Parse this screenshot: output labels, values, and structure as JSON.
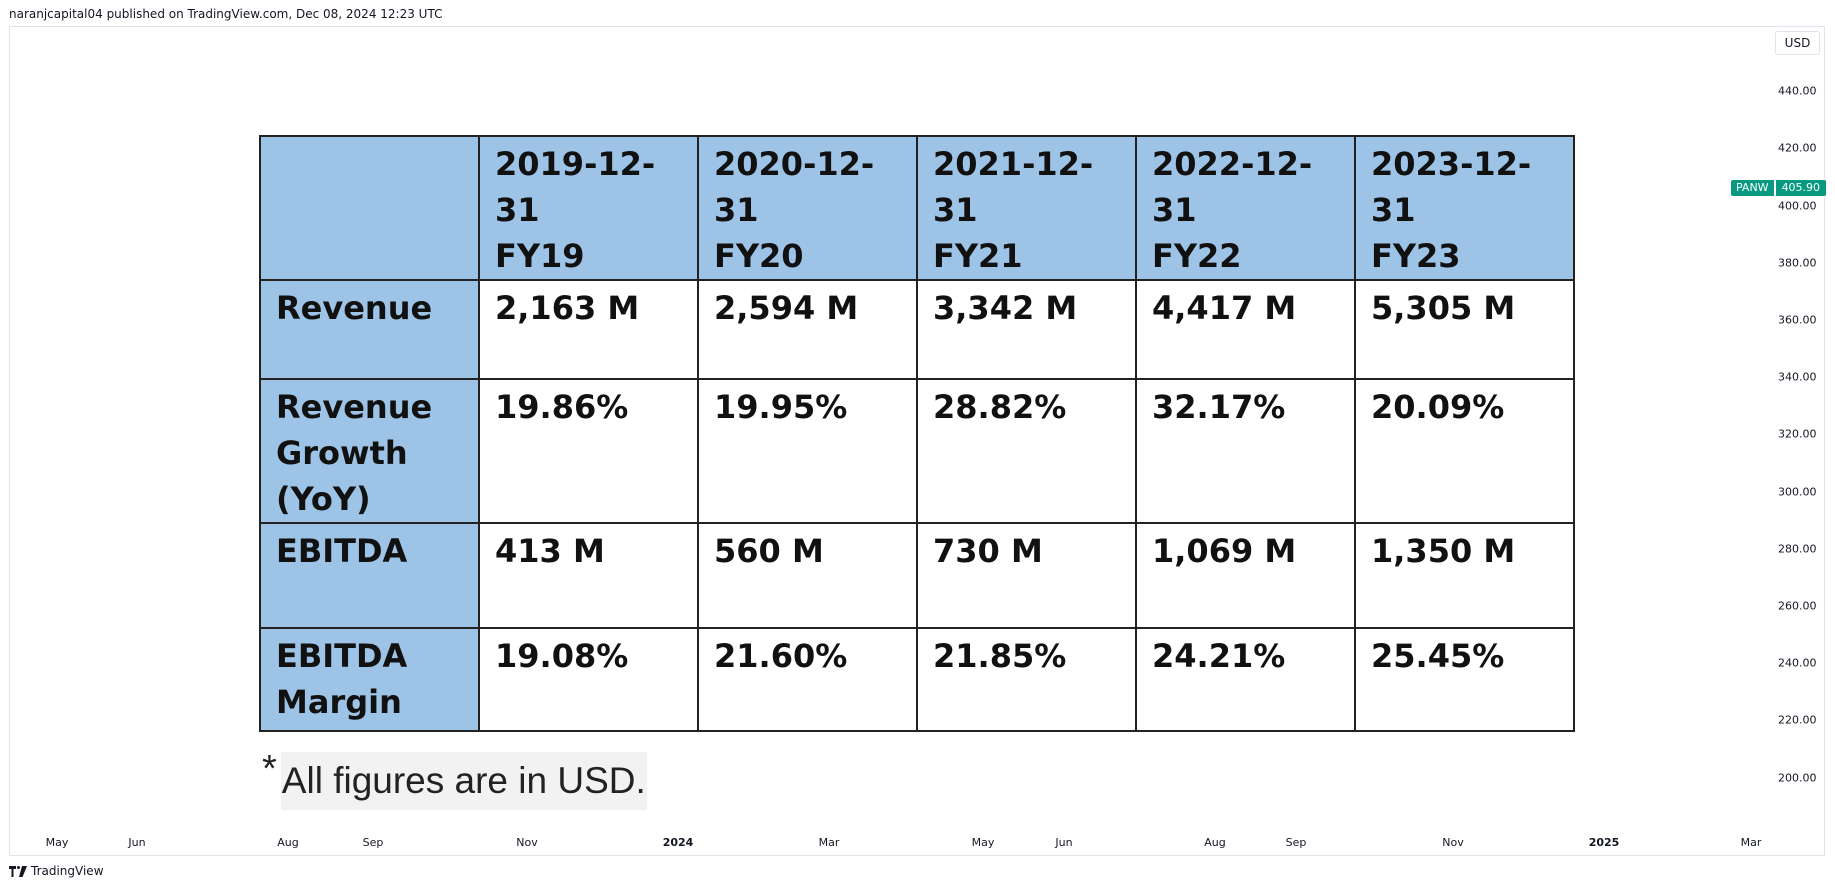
{
  "header": {
    "published": "naranjcapital04 published on TradingView.com, Dec 08, 2024 12:23 UTC"
  },
  "currency": "USD",
  "y_axis": {
    "ticks": [
      "440.00",
      "420.00",
      "400.00",
      "380.00",
      "360.00",
      "340.00",
      "320.00",
      "300.00",
      "280.00",
      "260.00",
      "240.00",
      "220.00",
      "200.00"
    ]
  },
  "price_tag": {
    "symbol": "PANW",
    "value": "405.90",
    "color": "#089981"
  },
  "x_axis": {
    "ticks": [
      {
        "label": "May",
        "bold": false
      },
      {
        "label": "Jun",
        "bold": false
      },
      {
        "label": "Aug",
        "bold": false
      },
      {
        "label": "Sep",
        "bold": false
      },
      {
        "label": "Nov",
        "bold": false
      },
      {
        "label": "2024",
        "bold": true
      },
      {
        "label": "Mar",
        "bold": false
      },
      {
        "label": "May",
        "bold": false
      },
      {
        "label": "Jun",
        "bold": false
      },
      {
        "label": "Aug",
        "bold": false
      },
      {
        "label": "Sep",
        "bold": false
      },
      {
        "label": "Nov",
        "bold": false
      },
      {
        "label": "2025",
        "bold": true
      },
      {
        "label": "Mar",
        "bold": false
      }
    ]
  },
  "table": {
    "header_color": "#9dc3e6",
    "columns": [
      {
        "date": "2019-12-31",
        "fy": "FY19"
      },
      {
        "date": "2020-12-31",
        "fy": "FY20"
      },
      {
        "date": "2021-12-31",
        "fy": "FY21"
      },
      {
        "date": "2022-12-31",
        "fy": "FY22"
      },
      {
        "date": "2023-12-31",
        "fy": "FY23"
      }
    ],
    "rows": [
      {
        "label_lines": [
          "Revenue"
        ],
        "values": [
          "2,163 M",
          "2,594 M",
          "3,342 M",
          "4,417 M",
          "5,305 M"
        ]
      },
      {
        "label_lines": [
          "Revenue",
          "Growth",
          "(YoY)"
        ],
        "values": [
          "19.86%",
          "19.95%",
          "28.82%",
          "32.17%",
          "20.09%"
        ]
      },
      {
        "label_lines": [
          "EBITDA"
        ],
        "values": [
          "413 M",
          "560 M",
          "730 M",
          "1,069 M",
          "1,350 M"
        ]
      },
      {
        "label_lines": [
          "EBITDA",
          "Margin"
        ],
        "values": [
          "19.08%",
          "21.60%",
          "21.85%",
          "24.21%",
          "25.45%"
        ]
      }
    ]
  },
  "footnote": {
    "star": "*",
    "text": "All figures are in USD."
  },
  "footer": {
    "brand": "TradingView"
  }
}
